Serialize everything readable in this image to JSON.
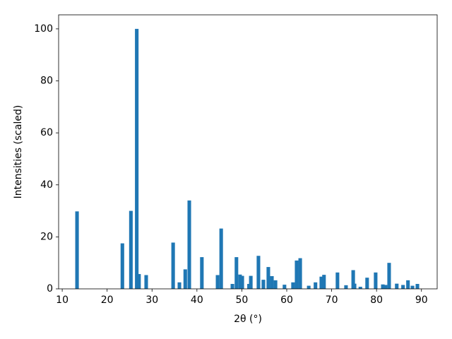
{
  "chart_data": {
    "type": "bar",
    "xlabel": "2θ (°)",
    "ylabel": "Intensities (scaled)",
    "color": "#1f77b4",
    "x": [
      13.3,
      23.4,
      25.3,
      26.6,
      27.1,
      28.7,
      34.7,
      36.1,
      37.4,
      38.3,
      41.1,
      44.6,
      45.4,
      47.9,
      48.8,
      49.6,
      50.1,
      51.6,
      52.0,
      53.7,
      54.8,
      55.9,
      56.7,
      57.5,
      59.5,
      61.4,
      62.2,
      63.0,
      64.9,
      66.4,
      67.7,
      68.3,
      71.3,
      73.2,
      74.8,
      75.1,
      76.4,
      77.9,
      79.8,
      81.4,
      82.0,
      82.8,
      84.5,
      85.9,
      87.0,
      88.0,
      89.1
    ],
    "values": [
      29.8,
      17.5,
      30,
      100,
      5.7,
      5.3,
      17.8,
      2.5,
      7.5,
      34,
      12.2,
      5.3,
      23.2,
      1.9,
      12.2,
      5.5,
      5.0,
      1.9,
      5.0,
      12.7,
      3.5,
      8.4,
      4.9,
      3.3,
      1.6,
      2.5,
      10.9,
      11.8,
      1.2,
      2.5,
      4.7,
      5.4,
      6.3,
      1.4,
      7.2,
      2.0,
      0.8,
      4.3,
      6.3,
      1.7,
      1.5,
      10,
      2.0,
      1.5,
      3.3,
      1.2,
      1.9
    ],
    "xlim": [
      9.2,
      93.5
    ],
    "ylim": [
      0,
      105.4
    ],
    "xticks": [
      10,
      20,
      30,
      40,
      50,
      60,
      70,
      80,
      90
    ],
    "yticks": [
      0,
      20,
      40,
      60,
      80,
      100
    ],
    "grid": false
  }
}
